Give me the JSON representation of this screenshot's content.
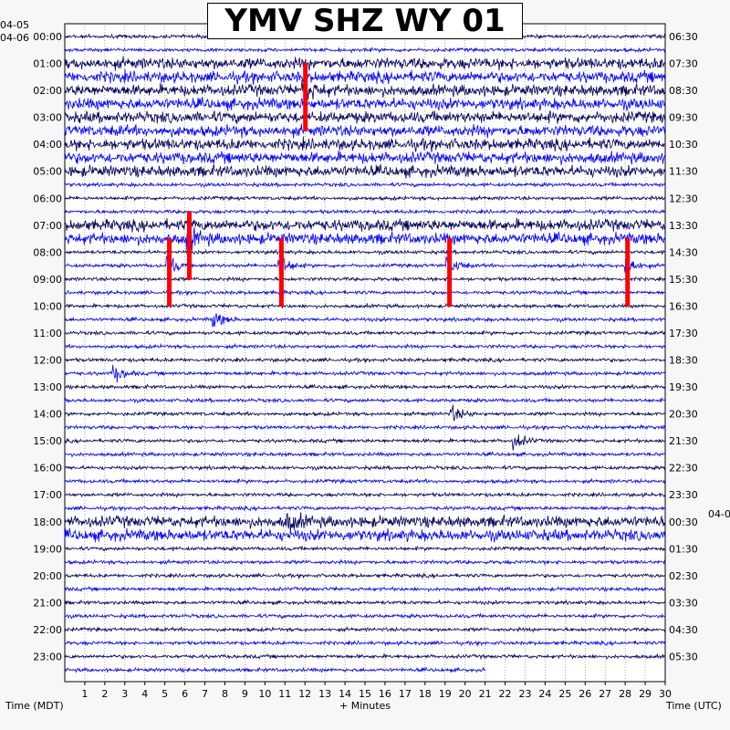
{
  "title": "YMV SHZ WY 01",
  "date_left_top": "04-05",
  "date_left_start": "04-06",
  "date_right_cut": "04-0",
  "footer": {
    "time_left": "Time (MDT)",
    "minutes": "+ Minutes",
    "time_right": "Time (UTC)"
  },
  "colors": {
    "trace_dark": "#00005a",
    "trace_blue": "#0000ff",
    "clip_red": "#ff0000",
    "grid": "#000000",
    "background": "#ffffff"
  },
  "chart_data": {
    "type": "helicorder",
    "station": "YMV SHZ WY 01",
    "x_axis": {
      "label": "+ Minutes",
      "range": [
        0,
        30
      ],
      "ticks": [
        1,
        2,
        3,
        4,
        5,
        6,
        7,
        8,
        9,
        10,
        11,
        12,
        13,
        14,
        15,
        16,
        17,
        18,
        19,
        20,
        21,
        22,
        23,
        24,
        25,
        26,
        27,
        28,
        29,
        30
      ]
    },
    "y_axis_left": {
      "label": "Time (MDT)",
      "ticks": [
        "00:00",
        "01:00",
        "02:00",
        "03:00",
        "04:00",
        "05:00",
        "06:00",
        "07:00",
        "08:00",
        "09:00",
        "10:00",
        "11:00",
        "12:00",
        "13:00",
        "14:00",
        "15:00",
        "16:00",
        "17:00",
        "18:00",
        "19:00",
        "20:00",
        "21:00",
        "22:00",
        "23:00"
      ]
    },
    "y_axis_right": {
      "label": "Time (UTC)",
      "ticks": [
        "06:30",
        "07:30",
        "08:30",
        "09:30",
        "10:30",
        "11:30",
        "12:30",
        "13:30",
        "14:30",
        "15:30",
        "16:30",
        "17:30",
        "18:30",
        "19:30",
        "20:30",
        "21:30",
        "22:30",
        "23:30",
        "00:30",
        "01:30",
        "02:30",
        "03:30",
        "04:30",
        "05:30"
      ]
    },
    "trace_count": 48,
    "trace_minutes": 30,
    "last_trace_end_minute": 21,
    "trace_color_cycle": [
      "trace_dark",
      "trace_blue"
    ],
    "noisy_periods": [
      {
        "trace_range": [
          2,
          10
        ],
        "note": "elevated noise early morning"
      },
      {
        "trace_range": [
          14,
          15
        ],
        "note": "elevated noise"
      },
      {
        "trace_range": [
          36,
          37
        ],
        "note": "elevated noise"
      }
    ],
    "events": [
      {
        "trace": 4,
        "minute": 12,
        "clipped": true
      },
      {
        "trace": 15,
        "minute": 6.2,
        "clipped": true
      },
      {
        "trace": 17,
        "minute": 5.2,
        "clipped": true
      },
      {
        "trace": 17,
        "minute": 10.8,
        "clipped": true
      },
      {
        "trace": 17,
        "minute": 19.2,
        "clipped": true
      },
      {
        "trace": 17,
        "minute": 28.1,
        "clipped": true
      },
      {
        "trace": 21,
        "minute": 7.5,
        "clipped": false
      },
      {
        "trace": 25,
        "minute": 2.5,
        "clipped": false
      },
      {
        "trace": 28,
        "minute": 19.4,
        "clipped": false
      },
      {
        "trace": 30,
        "minute": 22.5,
        "clipped": false
      },
      {
        "trace": 36,
        "minute": 11.2,
        "clipped": false
      }
    ]
  }
}
